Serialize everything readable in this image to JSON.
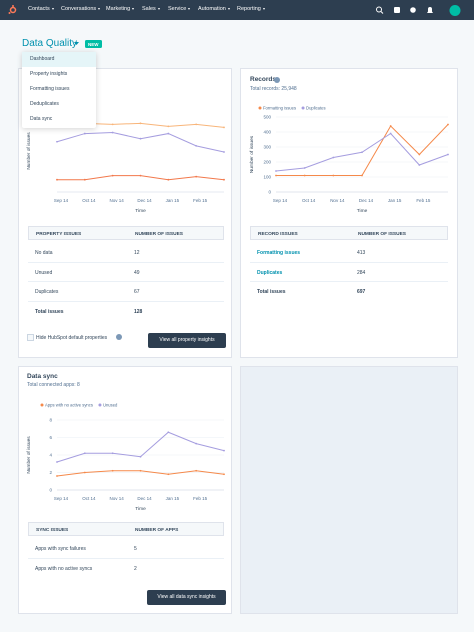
{
  "nav": {
    "items": [
      "Contacts",
      "Conversations",
      "Marketing",
      "Sales",
      "Service",
      "Automation",
      "Reporting"
    ]
  },
  "header": {
    "title": "Data Quality",
    "badge": "NEW"
  },
  "menu": {
    "items": [
      "Dashboard",
      "Property insights",
      "Formatting issues",
      "Deduplicates",
      "Data sync"
    ]
  },
  "property_panel": {
    "chart": {
      "type": "line",
      "x_label": "Time",
      "y_label": "Number of issues",
      "categories": [
        "Sep 14",
        "Oct 14",
        "Nov 14",
        "Dec 14",
        "Jan 15",
        "Feb 15",
        null
      ],
      "ylim": [
        0,
        80
      ],
      "series": [
        {
          "color": "#f8b57a",
          "values": [
            64,
            67,
            66,
            67,
            64,
            66,
            63
          ]
        },
        {
          "color": "#a59ddf",
          "values": [
            49,
            57,
            58,
            52,
            57,
            45,
            39
          ]
        },
        {
          "color": "#f2784b",
          "values": [
            12,
            12,
            16,
            16,
            12,
            15,
            12
          ]
        }
      ]
    },
    "table": {
      "columns": [
        "PROPERTY ISSUES",
        "NUMBER OF ISSUES"
      ],
      "rows": [
        [
          "No data",
          12
        ],
        [
          "Unused",
          49
        ],
        [
          "Duplicates",
          67
        ]
      ],
      "total": [
        "Total issues",
        128
      ]
    },
    "checkbox": "Hide HubSpot default properties",
    "button": "View all property insights"
  },
  "records_panel": {
    "title": "Records",
    "subtitle": "Total records: 25,948",
    "chart": {
      "type": "line",
      "x_label": "Time",
      "y_label": "Number of issues",
      "categories": [
        "Sep 14",
        "Oct 14",
        "Nov 14",
        "Dec 14",
        "Jan 15",
        "Feb 15",
        null
      ],
      "ylim": [
        0,
        500
      ],
      "yticks": [
        0,
        100,
        200,
        300,
        400,
        500
      ],
      "grid": true,
      "series": [
        {
          "name": "Formatting issues",
          "color": "#f5894a",
          "values": [
            110,
            110,
            110,
            110,
            440,
            250,
            450
          ]
        },
        {
          "name": "Duplicates",
          "color": "#a59ddf",
          "values": [
            140,
            160,
            230,
            265,
            390,
            180,
            250
          ]
        }
      ]
    },
    "table": {
      "columns": [
        "RECORD ISSUES",
        "NUMBER OF ISSUES"
      ],
      "rows": [
        [
          "Formatting issues",
          413
        ],
        [
          "Duplicates",
          284
        ]
      ],
      "total": [
        "Total issues",
        697
      ]
    }
  },
  "sync_panel": {
    "title": "Data sync",
    "subtitle": "Total connected apps: 8",
    "chart": {
      "type": "line",
      "x_label": "Time",
      "y_label": "Number of issues",
      "categories": [
        "Sep 14",
        "Oct 14",
        "Nov 14",
        "Dec 14",
        "Jan 15",
        "Feb 15",
        null
      ],
      "ylim": [
        0,
        8
      ],
      "yticks": [
        0,
        2,
        4,
        6,
        8
      ],
      "grid": true,
      "series": [
        {
          "name": "Apps with no active syncs",
          "color": "#f5894a",
          "values": [
            1.6,
            2,
            2.2,
            2.2,
            1.8,
            2.2,
            1.8
          ]
        },
        {
          "name": "Unused",
          "color": "#a59ddf",
          "values": [
            3.2,
            4.2,
            4.2,
            3.8,
            6.6,
            5.3,
            4.5
          ]
        }
      ]
    },
    "table": {
      "columns": [
        "SYNC ISSUES",
        "NUMBER OF APPS"
      ],
      "rows": [
        [
          "Apps with sync failures",
          5
        ],
        [
          "Apps with no active syncs",
          2
        ]
      ]
    },
    "button": "View all data sync insights"
  }
}
